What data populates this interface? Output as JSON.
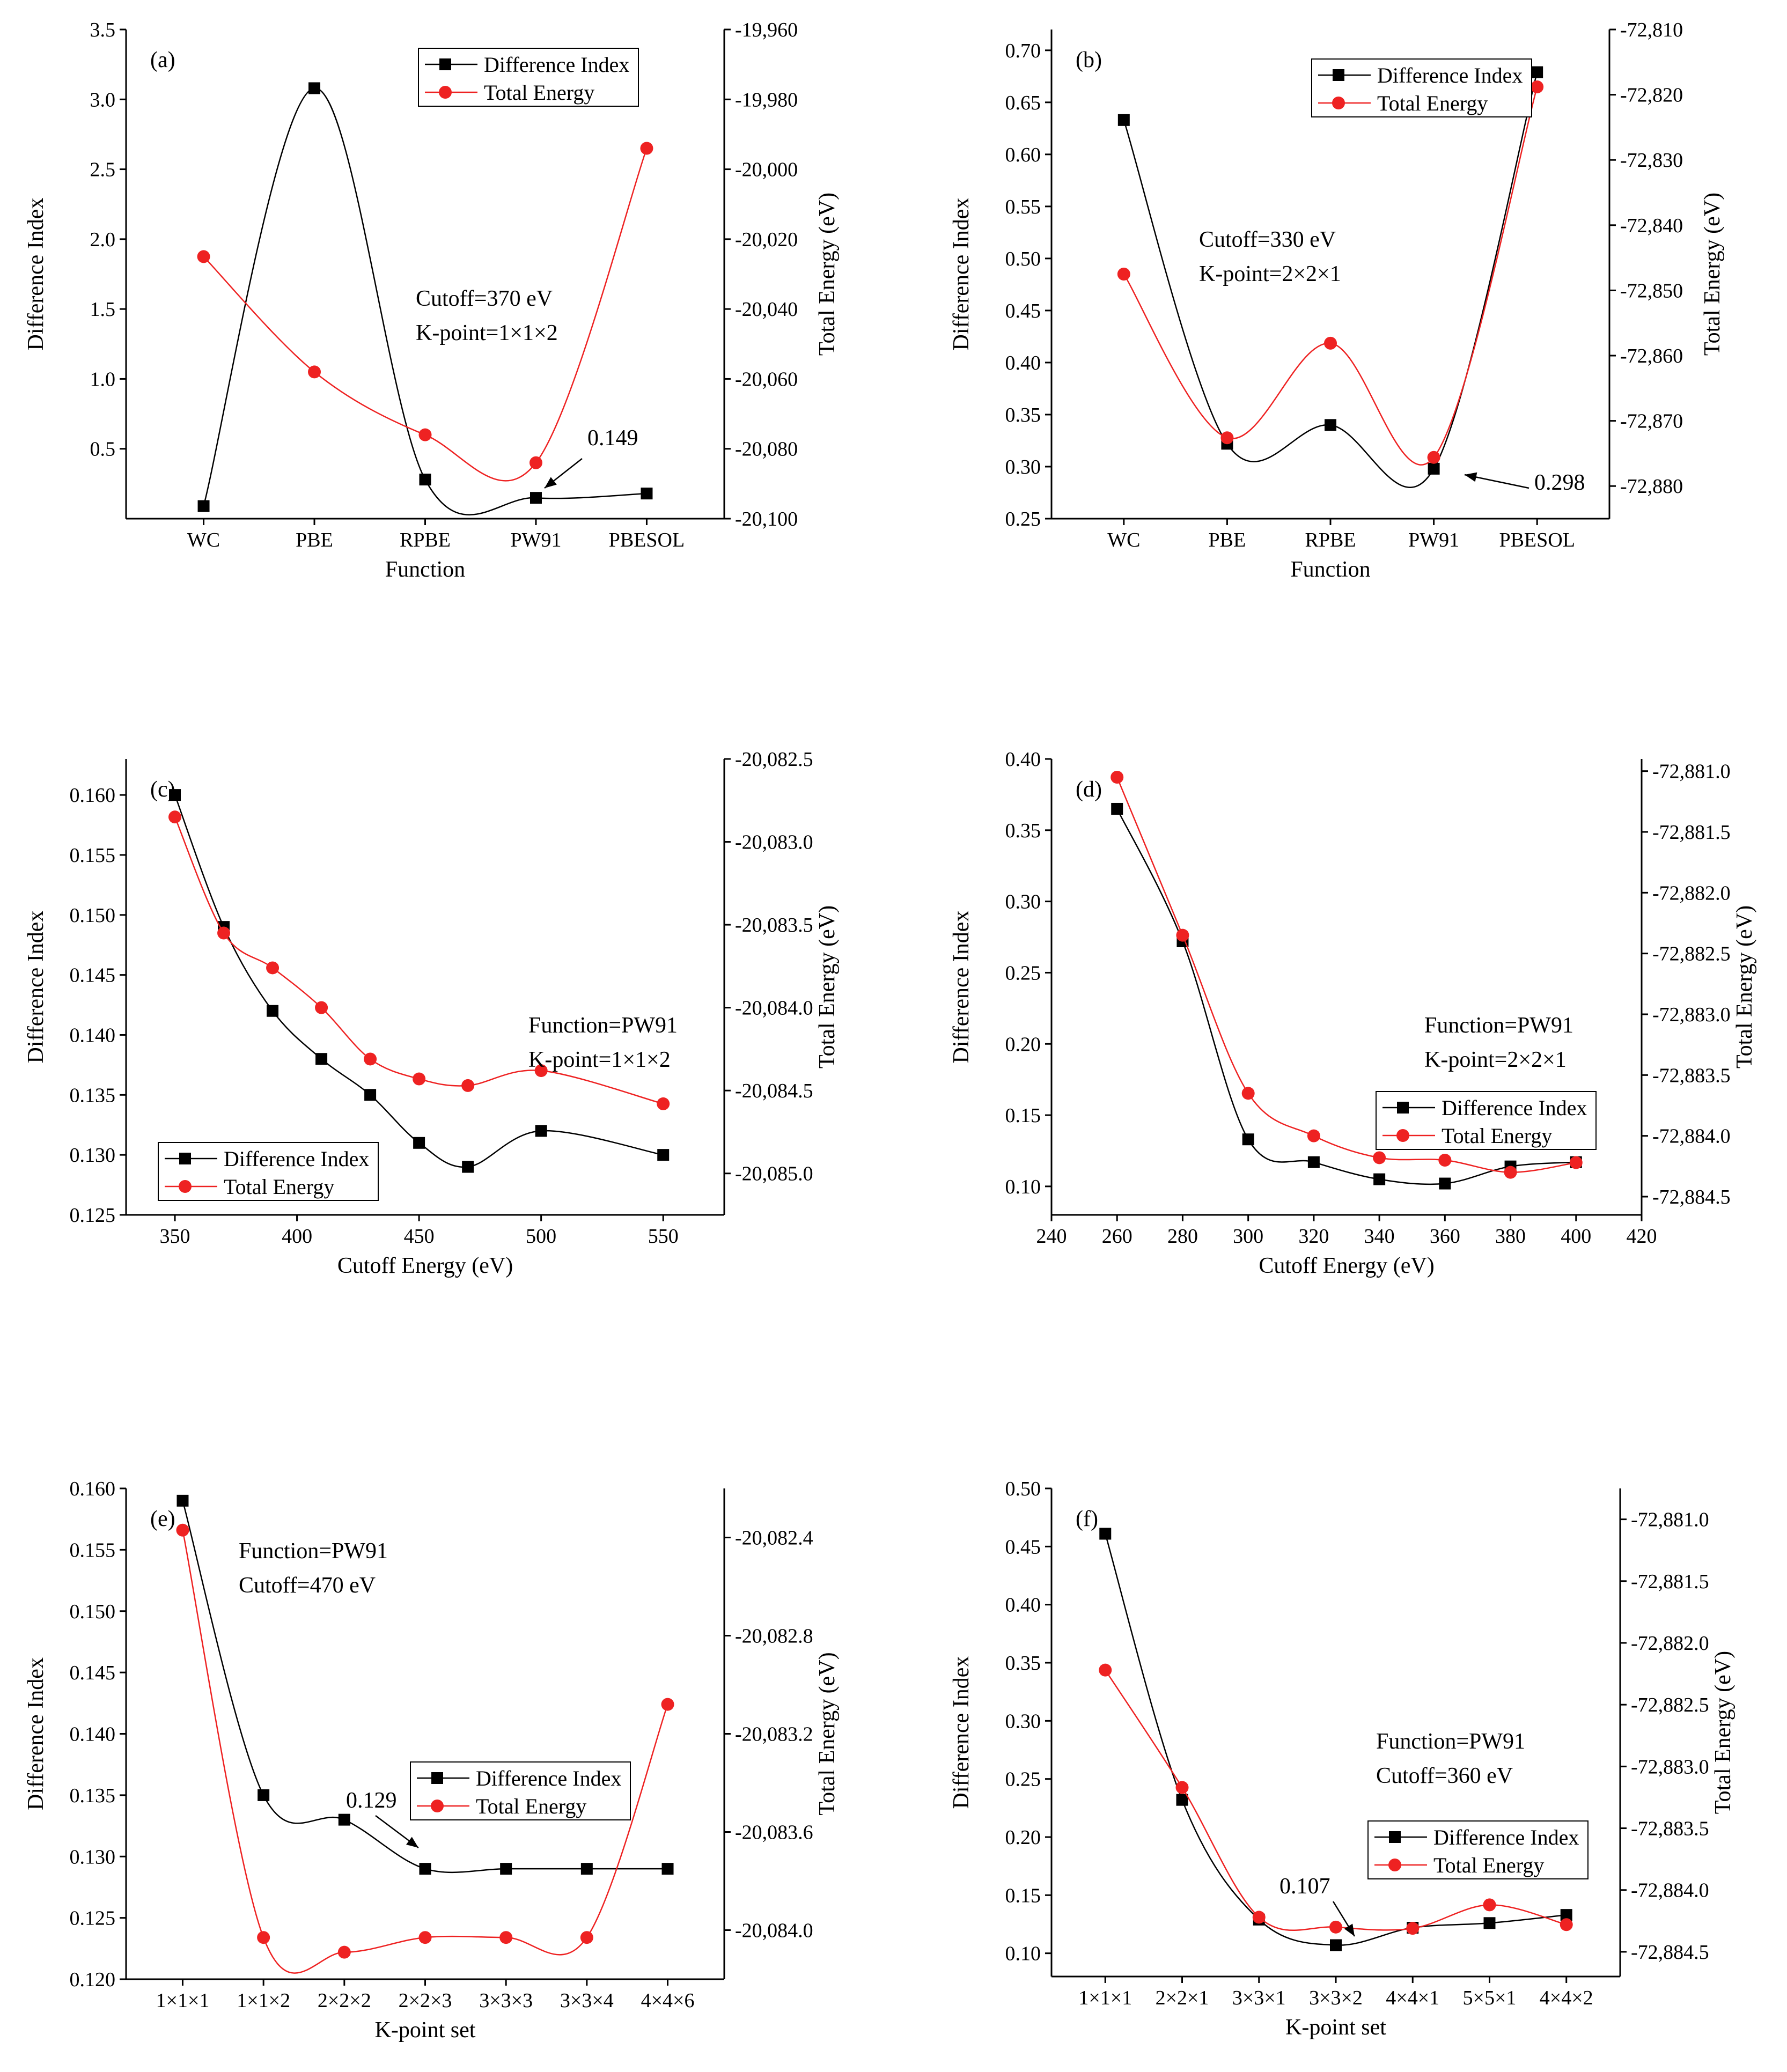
{
  "colors": {
    "difference_index": "#000000",
    "total_energy": "#ee2222",
    "axes": "#000000"
  },
  "chart_data": [
    {
      "type": "line",
      "panel_label": "(a)",
      "xlabel": "Function",
      "ylabel": "Difference Index",
      "y2label": "Total Energy (eV)",
      "categories": [
        "WC",
        "PBE",
        "RPBE",
        "PW91",
        "PBESOL"
      ],
      "ylim": [
        0.0,
        3.5
      ],
      "yticks": [
        "0.5",
        "1.0",
        "1.5",
        "2.0",
        "2.5",
        "3.0",
        "3.5"
      ],
      "y2lim": [
        -20100,
        -19960
      ],
      "y2ticks": [
        "-20,100",
        "-20,080",
        "-20,060",
        "-20,040",
        "-20,020",
        "-20,000",
        "-19,980",
        "-19,960"
      ],
      "series": [
        {
          "name": "Difference Index",
          "axis": "left",
          "values": [
            0.09,
            3.08,
            0.28,
            0.149,
            0.18
          ]
        },
        {
          "name": "Total Energy",
          "axis": "right",
          "values": [
            -20025,
            -20058,
            -20076,
            -20084,
            -19994
          ]
        }
      ],
      "annotations": [
        "Cutoff=370 eV",
        "K-point=1×1×2"
      ],
      "callout": "0.149",
      "legend": "top-right"
    },
    {
      "type": "line",
      "panel_label": "(b)",
      "xlabel": "Function",
      "ylabel": "Difference Index",
      "y2label": "Total Energy (eV)",
      "categories": [
        "WC",
        "PBE",
        "RPBE",
        "PW91",
        "PBESOL"
      ],
      "ylim": [
        0.25,
        0.72
      ],
      "yticks": [
        "0.25",
        "0.30",
        "0.35",
        "0.40",
        "0.45",
        "0.50",
        "0.55",
        "0.60",
        "0.65",
        "0.70"
      ],
      "y2lim": [
        -72885,
        -72810
      ],
      "y2ticks": [
        "-72,880",
        "-72,870",
        "-72,860",
        "-72,850",
        "-72,840",
        "-72,830",
        "-72,820",
        "-72,810"
      ],
      "series": [
        {
          "name": "Difference Index",
          "axis": "left",
          "values": [
            0.633,
            0.322,
            0.34,
            0.298,
            0.679
          ]
        },
        {
          "name": "Total Energy",
          "axis": "right",
          "values": [
            -72847.5,
            -72872.6,
            -72858.1,
            -72875.6,
            -72818.8
          ]
        }
      ],
      "annotations": [
        "Cutoff=330 eV",
        "K-point=2×2×1"
      ],
      "callout": "0.298",
      "legend": "top-right"
    },
    {
      "type": "line",
      "panel_label": "(c)",
      "xlabel": "Cutoff Energy (eV)",
      "ylabel": "Difference Index",
      "y2label": "Total Energy (eV)",
      "x": [
        350,
        370,
        390,
        410,
        430,
        450,
        470,
        500,
        550
      ],
      "xlim": [
        330,
        575
      ],
      "xticks": [
        "350",
        "400",
        "450",
        "500",
        "550"
      ],
      "ylim": [
        0.125,
        0.163
      ],
      "yticks": [
        "0.125",
        "0.130",
        "0.135",
        "0.140",
        "0.145",
        "0.150",
        "0.155",
        "0.160"
      ],
      "y2lim": [
        -20085.25,
        -20082.5
      ],
      "y2ticks": [
        "-20,085.0",
        "-20,084.5",
        "-20,084.0",
        "-20,083.5",
        "-20,083.0",
        "-20,082.5"
      ],
      "series": [
        {
          "name": "Difference Index",
          "axis": "left",
          "values": [
            0.16,
            0.149,
            0.142,
            0.138,
            0.135,
            0.131,
            0.129,
            0.132,
            0.13
          ]
        },
        {
          "name": "Total Energy",
          "axis": "right",
          "values": [
            -20082.85,
            -20083.55,
            -20083.76,
            -20084.0,
            -20084.31,
            -20084.43,
            -20084.47,
            -20084.38,
            -20084.58
          ]
        }
      ],
      "annotations": [
        "Function=PW91",
        "K-point=1×1×2"
      ],
      "legend": "bottom-left"
    },
    {
      "type": "line",
      "panel_label": "(d)",
      "xlabel": "Cutoff Energy (eV)",
      "ylabel": "Difference Index",
      "y2label": "Total Energy (eV)",
      "x": [
        260,
        280,
        300,
        320,
        340,
        360,
        380,
        400
      ],
      "xlim": [
        240,
        420
      ],
      "xticks": [
        "240",
        "260",
        "280",
        "300",
        "320",
        "340",
        "360",
        "380",
        "400",
        "420"
      ],
      "ylim": [
        0.08,
        0.4
      ],
      "yticks": [
        "0.10",
        "0.15",
        "0.20",
        "0.25",
        "0.30",
        "0.35",
        "0.40"
      ],
      "y2lim": [
        -72884.65,
        -72880.9
      ],
      "y2ticks": [
        "-72,884.5",
        "-72,884.0",
        "-72,883.5",
        "-72,883.0",
        "-72,882.5",
        "-72,882.0",
        "-72,881.5",
        "-72,881.0"
      ],
      "series": [
        {
          "name": "Difference Index",
          "axis": "left",
          "values": [
            0.365,
            0.272,
            0.133,
            0.117,
            0.105,
            0.102,
            0.114,
            0.117
          ]
        },
        {
          "name": "Total Energy",
          "axis": "right",
          "values": [
            -72881.05,
            -72882.35,
            -72883.65,
            -72884.0,
            -72884.18,
            -72884.2,
            -72884.3,
            -72884.22
          ]
        }
      ],
      "annotations": [
        "Function=PW91",
        "K-point=2×2×1"
      ],
      "legend": "bottom-right"
    },
    {
      "type": "line",
      "panel_label": "(e)",
      "xlabel": "K-point set",
      "ylabel": "Difference Index",
      "y2label": "Total Energy (eV)",
      "categories": [
        "1×1×1",
        "1×1×2",
        "2×2×2",
        "2×2×3",
        "3×3×3",
        "3×3×4",
        "4×4×6"
      ],
      "ylim": [
        0.12,
        0.16
      ],
      "yticks": [
        "0.120",
        "0.125",
        "0.130",
        "0.135",
        "0.140",
        "0.145",
        "0.150",
        "0.155",
        "0.160"
      ],
      "y2lim": [
        -20084.2,
        -20082.2
      ],
      "y2ticks": [
        "-20,084.0",
        "-20,083.6",
        "-20,083.2",
        "-20,082.8",
        "-20,082.4"
      ],
      "series": [
        {
          "name": "Difference Index",
          "axis": "left",
          "values": [
            0.159,
            0.135,
            0.133,
            0.129,
            0.129,
            0.129,
            0.129
          ]
        },
        {
          "name": "Total Energy",
          "axis": "right",
          "values": [
            -20082.37,
            -20084.03,
            -20084.09,
            -20084.03,
            -20084.03,
            -20084.03,
            -20083.08
          ]
        }
      ],
      "annotations": [
        "Function=PW91",
        "Cutoff=470 eV"
      ],
      "callout": "0.129",
      "legend": "center-right"
    },
    {
      "type": "line",
      "panel_label": "(f)",
      "xlabel": "K-point set",
      "ylabel": "Difference Index",
      "y2label": "Total Energy (eV)",
      "categories": [
        "1×1×1",
        "2×2×1",
        "3×3×1",
        "3×3×2",
        "4×4×1",
        "5×5×1",
        "4×4×2"
      ],
      "ylim": [
        0.08,
        0.5
      ],
      "yticks": [
        "0.10",
        "0.15",
        "0.20",
        "0.25",
        "0.30",
        "0.35",
        "0.40",
        "0.45",
        "0.50"
      ],
      "y2lim": [
        -72884.7,
        -72880.75
      ],
      "y2ticks": [
        "-72,884.5",
        "-72,884.0",
        "-72,883.5",
        "-72,883.0",
        "-72,882.5",
        "-72,882.0",
        "-72,881.5",
        "-72,881.0"
      ],
      "series": [
        {
          "name": "Difference Index",
          "axis": "left",
          "values": [
            0.461,
            0.232,
            0.129,
            0.107,
            0.122,
            0.126,
            0.133
          ]
        },
        {
          "name": "Total Energy",
          "axis": "right",
          "values": [
            -72882.22,
            -72883.17,
            -72884.22,
            -72884.3,
            -72884.31,
            -72884.12,
            -72884.28
          ]
        }
      ],
      "annotations": [
        "Function=PW91",
        "Cutoff=360 eV"
      ],
      "callout": "0.107",
      "legend": "center-right"
    }
  ]
}
